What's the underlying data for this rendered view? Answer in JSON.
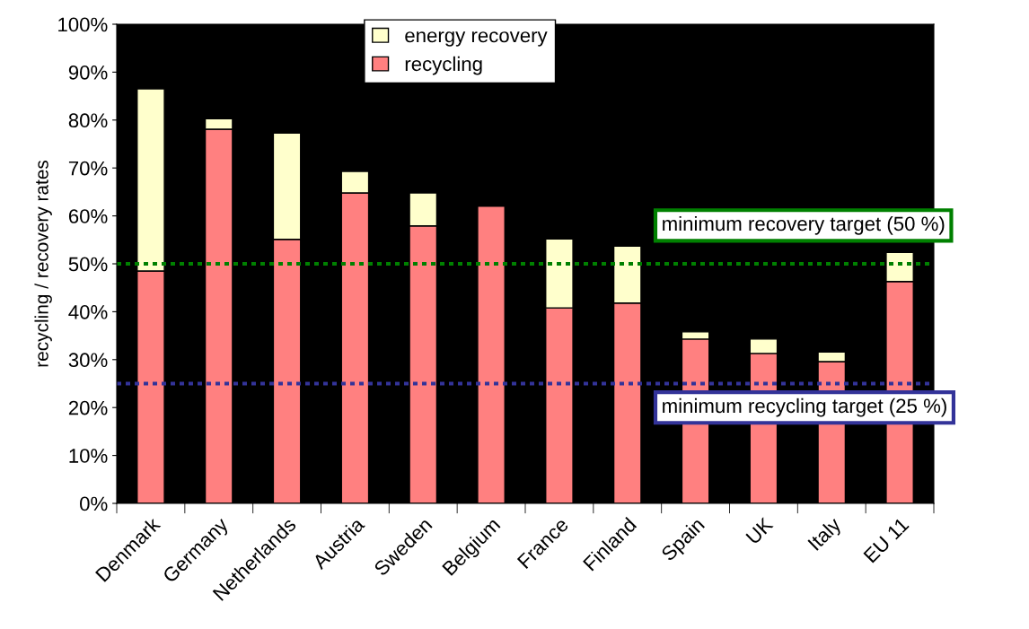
{
  "chart_data": {
    "type": "bar",
    "stacked": true,
    "ylabel": "recycling / recovery rates",
    "categories": [
      "Denmark",
      "Germany",
      "Netherlands",
      "Austria",
      "Sweden",
      "Belgium",
      "France",
      "Finland",
      "Spain",
      "UK",
      "Italy",
      "EU 11"
    ],
    "series": [
      {
        "name": "recycling",
        "color": "#ff8080",
        "values": [
          48.5,
          78.1,
          55.1,
          64.8,
          57.9,
          62.0,
          40.8,
          41.8,
          34.3,
          31.3,
          29.6,
          46.3
        ]
      },
      {
        "name": "energy recovery",
        "color": "#ffffcc",
        "values": [
          38.0,
          2.2,
          22.2,
          4.5,
          6.9,
          null,
          14.4,
          11.9,
          1.5,
          3.0,
          2.0,
          6.1
        ]
      }
    ],
    "ylim": [
      0,
      100
    ],
    "yticks": [
      {
        "value": 0,
        "label": "0%"
      },
      {
        "value": 10,
        "label": "10%"
      },
      {
        "value": 20,
        "label": "20%"
      },
      {
        "value": 30,
        "label": "30%"
      },
      {
        "value": 40,
        "label": "40%"
      },
      {
        "value": 50,
        "label": "50%"
      },
      {
        "value": 60,
        "label": "60%"
      },
      {
        "value": 70,
        "label": "70%"
      },
      {
        "value": 80,
        "label": "80%"
      },
      {
        "value": 90,
        "label": "90%"
      },
      {
        "value": 100,
        "label": "100%"
      }
    ],
    "ref_lines": [
      {
        "axis": "y",
        "value": 50,
        "label": "minimum recovery target (50 %)",
        "color": "#008000",
        "line_style": "dotted"
      },
      {
        "axis": "y",
        "value": 25,
        "label": "minimum recycling target (25 %)",
        "color": "#333399",
        "line_style": "dotted"
      }
    ],
    "grid": false,
    "legend": "top"
  }
}
